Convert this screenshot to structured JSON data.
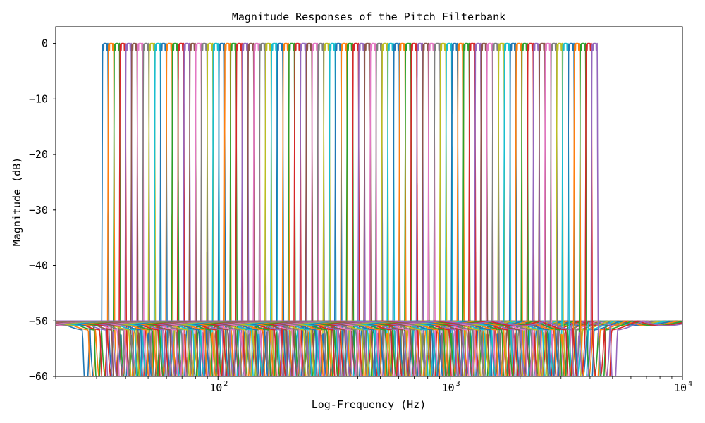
{
  "chart_data": {
    "type": "line",
    "title": "Magnitude Responses of the Pitch Filterbank",
    "xlabel": "Log-Frequency (Hz)",
    "ylabel": "Magnitude (dB)",
    "x_scale": "log",
    "xlim": [
      20,
      10000
    ],
    "ylim": [
      -60,
      3
    ],
    "x_major_ticks": [
      {
        "value": 100,
        "base": "10",
        "exp": "2"
      },
      {
        "value": 1000,
        "base": "10",
        "exp": "3"
      },
      {
        "value": 10000,
        "base": "10",
        "exp": "4"
      }
    ],
    "y_ticks": [
      {
        "value": 0,
        "label": "0"
      },
      {
        "value": -10,
        "label": "−10"
      },
      {
        "value": -20,
        "label": "−20"
      },
      {
        "value": -30,
        "label": "−30"
      },
      {
        "value": -40,
        "label": "−40"
      },
      {
        "value": -50,
        "label": "−50"
      },
      {
        "value": -60,
        "label": "−60"
      }
    ],
    "grid": false,
    "legend": "none",
    "filterbank": {
      "first_center_hz": 32.7,
      "last_center_hz": 4186,
      "semitone_step_ratio": 1.0594631,
      "num_filters": 85,
      "passband_db": 0,
      "stopband_db": -50,
      "passband_half_width_semitones": 0.45
    },
    "color_cycle": [
      "#1f77b4",
      "#ff7f0e",
      "#2ca02c",
      "#d62728",
      "#9467bd",
      "#8c564b",
      "#e377c2",
      "#7f7f7f",
      "#bcbd22",
      "#17becf"
    ]
  }
}
